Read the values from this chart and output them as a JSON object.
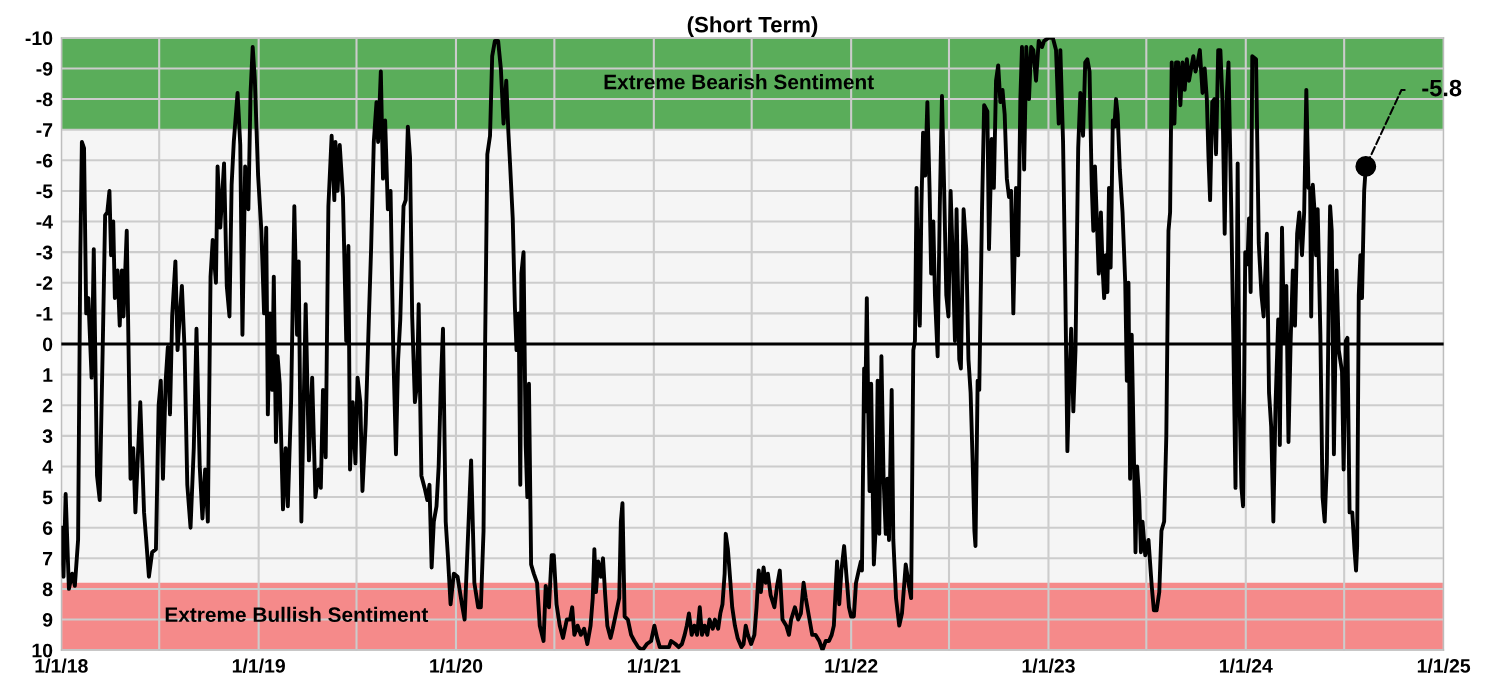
{
  "chart_data": {
    "type": "line",
    "title": "(Short Term)",
    "xlim": [
      "2018-01-01",
      "2025-01-01"
    ],
    "xticks": [
      {
        "value": "2018-01-01",
        "label": "1/1/18"
      },
      {
        "value": "2018-07-01",
        "label": null
      },
      {
        "value": "2019-01-01",
        "label": "1/1/19"
      },
      {
        "value": "2019-07-01",
        "label": null
      },
      {
        "value": "2020-01-01",
        "label": "1/1/20"
      },
      {
        "value": "2020-07-01",
        "label": null
      },
      {
        "value": "2021-01-01",
        "label": "1/1/21"
      },
      {
        "value": "2021-07-01",
        "label": null
      },
      {
        "value": "2022-01-01",
        "label": "1/1/22"
      },
      {
        "value": "2022-07-01",
        "label": null
      },
      {
        "value": "2023-01-01",
        "label": "1/1/23"
      },
      {
        "value": "2023-07-01",
        "label": null
      },
      {
        "value": "2024-01-01",
        "label": "1/1/24"
      },
      {
        "value": "2024-07-01",
        "label": null
      },
      {
        "value": "2025-01-01",
        "label": "1/1/25"
      }
    ],
    "ylim": [
      10,
      -10
    ],
    "yticks": [
      -10,
      -9,
      -8,
      -7,
      -6,
      -5,
      -4,
      -3,
      -2,
      -1,
      0,
      1,
      2,
      3,
      4,
      5,
      6,
      7,
      8,
      9,
      10
    ],
    "grid": true,
    "line_style": "solid",
    "ref_lines": [
      {
        "axis": "y",
        "value": 0,
        "label": null,
        "color": "#000000"
      }
    ],
    "bands": [
      {
        "axis": "y",
        "from": -10,
        "to": -7,
        "label": "Extreme Bearish Sentiment",
        "color": "#5aad5a"
      },
      {
        "axis": "y",
        "from": 10,
        "to": 7.8,
        "label": "Extreme Bullish Sentiment",
        "color": "#f58a8a"
      }
    ],
    "annotations": [
      {
        "text": "-5.8",
        "x": "2024-08-10",
        "y": -5.8
      }
    ],
    "series": [
      {
        "color": "#000000",
        "x": [
          "2018-01-01",
          "2018-01-05",
          "2018-01-09",
          "2018-01-15",
          "2018-01-21",
          "2018-01-26",
          "2018-02-01",
          "2018-02-05",
          "2018-02-08",
          "2018-02-12",
          "2018-02-16",
          "2018-02-20",
          "2018-02-26",
          "2018-03-02",
          "2018-03-08",
          "2018-03-13",
          "2018-03-19",
          "2018-03-23",
          "2018-03-27",
          "2018-03-31",
          "2018-04-03",
          "2018-04-07",
          "2018-04-10",
          "2018-04-15",
          "2018-04-19",
          "2018-04-23",
          "2018-04-26",
          "2018-05-02",
          "2018-05-09",
          "2018-05-14",
          "2018-05-18",
          "2018-05-22",
          "2018-05-27",
          "2018-06-03",
          "2018-06-07",
          "2018-06-12",
          "2018-06-18",
          "2018-06-25",
          "2018-06-30",
          "2018-07-04",
          "2018-07-08",
          "2018-07-13",
          "2018-07-17",
          "2018-07-21",
          "2018-07-25",
          "2018-07-31",
          "2018-08-04",
          "2018-08-08",
          "2018-08-12",
          "2018-08-17",
          "2018-08-22",
          "2018-08-28",
          "2018-09-03",
          "2018-09-08",
          "2018-09-14",
          "2018-09-19",
          "2018-09-24",
          "2018-09-29",
          "2018-10-04",
          "2018-10-08",
          "2018-10-14",
          "2018-10-17",
          "2018-10-22",
          "2018-10-29",
          "2018-11-03",
          "2018-11-08",
          "2018-11-12",
          "2018-11-16",
          "2018-11-23",
          "2018-11-28",
          "2018-12-02",
          "2018-12-07",
          "2018-12-13",
          "2018-12-17",
          "2018-12-21",
          "2018-12-25",
          "2018-12-31",
          "2019-01-06",
          "2019-01-11",
          "2019-01-15",
          "2019-01-18",
          "2019-01-22",
          "2019-01-26",
          "2019-01-29",
          "2019-02-02",
          "2019-02-05",
          "2019-02-09",
          "2019-02-15",
          "2019-02-20",
          "2019-02-24",
          "2019-03-02",
          "2019-03-08",
          "2019-03-13",
          "2019-03-16",
          "2019-03-21",
          "2019-03-29",
          "2019-04-04",
          "2019-04-10",
          "2019-04-16",
          "2019-04-22",
          "2019-04-26",
          "2019-04-30",
          "2019-05-05",
          "2019-05-10",
          "2019-05-16",
          "2019-05-21",
          "2019-05-23",
          "2019-05-27",
          "2019-05-31",
          "2019-06-06",
          "2019-06-12",
          "2019-06-16",
          "2019-06-19",
          "2019-06-24",
          "2019-06-29",
          "2019-07-03",
          "2019-07-08",
          "2019-07-12",
          "2019-07-18",
          "2019-07-24",
          "2019-07-28",
          "2019-08-02",
          "2019-08-07",
          "2019-08-10",
          "2019-08-15",
          "2019-08-19",
          "2019-08-23",
          "2019-08-28",
          "2019-09-02",
          "2019-09-07",
          "2019-09-12",
          "2019-09-16",
          "2019-09-20",
          "2019-09-26",
          "2019-09-30",
          "2019-10-04",
          "2019-10-08",
          "2019-10-12",
          "2019-10-17",
          "2019-10-21",
          "2019-10-24",
          "2019-10-29",
          "2019-11-04",
          "2019-11-09",
          "2019-11-13",
          "2019-11-17",
          "2019-11-21",
          "2019-11-26",
          "2019-11-30",
          "2019-12-04",
          "2019-12-08",
          "2019-12-13",
          "2019-12-17",
          "2019-12-22",
          "2019-12-28",
          "2020-01-04",
          "2020-01-12",
          "2020-01-17",
          "2020-01-23",
          "2020-01-29",
          "2020-02-04",
          "2020-02-11",
          "2020-02-16",
          "2020-02-21",
          "2020-02-24",
          "2020-02-28",
          "2020-03-04",
          "2020-03-08",
          "2020-03-13",
          "2020-03-19",
          "2020-03-24",
          "2020-03-29",
          "2020-04-03",
          "2020-04-07",
          "2020-04-10",
          "2020-04-15",
          "2020-04-19",
          "2020-04-22",
          "2020-04-26",
          "2020-04-29",
          "2020-05-01",
          "2020-05-05",
          "2020-05-09",
          "2020-05-12",
          "2020-05-15",
          "2020-05-19",
          "2020-05-24",
          "2020-05-30",
          "2020-06-04",
          "2020-06-11",
          "2020-06-15",
          "2020-06-21",
          "2020-06-26",
          "2020-06-30",
          "2020-07-05",
          "2020-07-11",
          "2020-07-17",
          "2020-07-24",
          "2020-07-30",
          "2020-08-03",
          "2020-08-07",
          "2020-08-13",
          "2020-08-19",
          "2020-08-25",
          "2020-08-31",
          "2020-09-06",
          "2020-09-10",
          "2020-09-13",
          "2020-09-16",
          "2020-09-20",
          "2020-09-25",
          "2020-09-29",
          "2020-10-03",
          "2020-10-07",
          "2020-10-13",
          "2020-10-17",
          "2020-10-23",
          "2020-10-29",
          "2020-11-01",
          "2020-11-04",
          "2020-11-08",
          "2020-11-14",
          "2020-11-20",
          "2020-11-26",
          "2020-12-03",
          "2020-12-11",
          "2020-12-19",
          "2020-12-27",
          "2021-01-02",
          "2021-01-07",
          "2021-01-12",
          "2021-01-20",
          "2021-01-29",
          "2021-02-02",
          "2021-02-10",
          "2021-02-16",
          "2021-02-22",
          "2021-02-27",
          "2021-03-03",
          "2021-03-07",
          "2021-03-12",
          "2021-03-17",
          "2021-03-22",
          "2021-03-27",
          "2021-03-31",
          "2021-04-05",
          "2021-04-10",
          "2021-04-14",
          "2021-04-20",
          "2021-04-24",
          "2021-04-30",
          "2021-05-04",
          "2021-05-08",
          "2021-05-12",
          "2021-05-14",
          "2021-05-18",
          "2021-05-21",
          "2021-05-26",
          "2021-05-31",
          "2021-06-05",
          "2021-06-12",
          "2021-06-16",
          "2021-06-20",
          "2021-06-24",
          "2021-06-30",
          "2021-07-06",
          "2021-07-10",
          "2021-07-14",
          "2021-07-18",
          "2021-07-23",
          "2021-07-27",
          "2021-07-31",
          "2021-08-05",
          "2021-08-12",
          "2021-08-17",
          "2021-08-22",
          "2021-08-27",
          "2021-09-03",
          "2021-09-08",
          "2021-09-12",
          "2021-09-19",
          "2021-09-25",
          "2021-09-30",
          "2021-10-05",
          "2021-10-09",
          "2021-10-15",
          "2021-10-21",
          "2021-10-27",
          "2021-11-03",
          "2021-11-09",
          "2021-11-15",
          "2021-11-21",
          "2021-11-26",
          "2021-11-30",
          "2021-12-06",
          "2021-12-10",
          "2021-12-14",
          "2021-12-19",
          "2021-12-23",
          "2021-12-28",
          "2022-01-01",
          "2022-01-06",
          "2022-01-10",
          "2022-01-15",
          "2022-01-19",
          "2022-01-21",
          "2022-01-25",
          "2022-01-27",
          "2022-01-30",
          "2022-02-02",
          "2022-02-04",
          "2022-02-07",
          "2022-02-12",
          "2022-02-16",
          "2022-02-19",
          "2022-02-22",
          "2022-02-26",
          "2022-03-02",
          "2022-03-06",
          "2022-03-09",
          "2022-03-12",
          "2022-03-17",
          "2022-03-20",
          "2022-03-25",
          "2022-03-31",
          "2022-04-05",
          "2022-04-12",
          "2022-04-18",
          "2022-04-22",
          "2022-04-26",
          "2022-04-29",
          "2022-05-02",
          "2022-05-05",
          "2022-05-08",
          "2022-05-11",
          "2022-05-14",
          "2022-05-18",
          "2022-05-22",
          "2022-05-26",
          "2022-05-29",
          "2022-06-02",
          "2022-06-05",
          "2022-06-10",
          "2022-06-14",
          "2022-06-18",
          "2022-06-22",
          "2022-06-26",
          "2022-06-30",
          "2022-07-04",
          "2022-07-09",
          "2022-07-12",
          "2022-07-15",
          "2022-07-20",
          "2022-07-23",
          "2022-07-28",
          "2022-08-02",
          "2022-08-06",
          "2022-08-10",
          "2022-08-14",
          "2022-08-17",
          "2022-08-19",
          "2022-08-23",
          "2022-08-26",
          "2022-08-31",
          "2022-09-04",
          "2022-09-10",
          "2022-09-13",
          "2022-09-18",
          "2022-09-22",
          "2022-09-26",
          "2022-09-30",
          "2022-10-04",
          "2022-10-08",
          "2022-10-12",
          "2022-10-16",
          "2022-10-20",
          "2022-10-24",
          "2022-10-28",
          "2022-11-02",
          "2022-11-06",
          "2022-11-10",
          "2022-11-13",
          "2022-11-17",
          "2022-11-21",
          "2022-11-26",
          "2022-11-30",
          "2022-12-04",
          "2022-12-09",
          "2022-12-14",
          "2022-12-20",
          "2022-12-24",
          "2023-01-01",
          "2023-01-09",
          "2023-01-15",
          "2023-01-20",
          "2023-01-23",
          "2023-01-28",
          "2023-02-01",
          "2023-02-05",
          "2023-02-08",
          "2023-02-12",
          "2023-02-16",
          "2023-02-20",
          "2023-02-25",
          "2023-03-01",
          "2023-03-06",
          "2023-03-10",
          "2023-03-14",
          "2023-03-18",
          "2023-03-22",
          "2023-03-25",
          "2023-03-28",
          "2023-03-31",
          "2023-04-04",
          "2023-04-08",
          "2023-04-11",
          "2023-04-14",
          "2023-04-17",
          "2023-04-20",
          "2023-04-23",
          "2023-04-26",
          "2023-04-30",
          "2023-05-03",
          "2023-05-06",
          "2023-05-09",
          "2023-05-13",
          "2023-05-18",
          "2023-05-23",
          "2023-05-26",
          "2023-05-29",
          "2023-06-01",
          "2023-06-04",
          "2023-06-08",
          "2023-06-11",
          "2023-06-14",
          "2023-06-18",
          "2023-06-21",
          "2023-06-24",
          "2023-06-29",
          "2023-07-05",
          "2023-07-11",
          "2023-07-15",
          "2023-07-20",
          "2023-07-25",
          "2023-07-29",
          "2023-08-03",
          "2023-08-07",
          "2023-08-11",
          "2023-08-14",
          "2023-08-17",
          "2023-08-22",
          "2023-08-25",
          "2023-08-29",
          "2023-09-02",
          "2023-09-06",
          "2023-09-10",
          "2023-09-14",
          "2023-09-18",
          "2023-09-22",
          "2023-09-26",
          "2023-09-30",
          "2023-10-04",
          "2023-10-08",
          "2023-10-13",
          "2023-10-17",
          "2023-10-21",
          "2023-10-24",
          "2023-10-27",
          "2023-10-31",
          "2023-11-04",
          "2023-11-07",
          "2023-11-11",
          "2023-11-15",
          "2023-11-19",
          "2023-11-23",
          "2023-11-27",
          "2023-11-30",
          "2023-12-05",
          "2023-12-09",
          "2023-12-13",
          "2023-12-17",
          "2023-12-20",
          "2023-12-24",
          "2023-12-27",
          "2023-12-31",
          "2024-01-04",
          "2024-01-07",
          "2024-01-10",
          "2024-01-13",
          "2024-01-20",
          "2024-01-25",
          "2024-01-30",
          "2024-02-03",
          "2024-02-09",
          "2024-02-13",
          "2024-02-17",
          "2024-02-21",
          "2024-02-25",
          "2024-03-01",
          "2024-03-04",
          "2024-03-08",
          "2024-03-12",
          "2024-03-16",
          "2024-03-20",
          "2024-03-24",
          "2024-03-28",
          "2024-04-01",
          "2024-04-05",
          "2024-04-09",
          "2024-04-14",
          "2024-04-18",
          "2024-04-22",
          "2024-04-26",
          "2024-04-29",
          "2024-05-01",
          "2024-05-04",
          "2024-05-07",
          "2024-05-10",
          "2024-05-13",
          "2024-05-18",
          "2024-05-22",
          "2024-05-26",
          "2024-05-30",
          "2024-06-03",
          "2024-06-05",
          "2024-06-08",
          "2024-06-12",
          "2024-06-17",
          "2024-06-21",
          "2024-06-27",
          "2024-06-30",
          "2024-07-04",
          "2024-07-07",
          "2024-07-11",
          "2024-07-16",
          "2024-07-20",
          "2024-07-23",
          "2024-07-25",
          "2024-07-28",
          "2024-07-31",
          "2024-08-03",
          "2024-08-07",
          "2024-08-10"
        ],
        "values": [
          6.0,
          7.6,
          4.9,
          8.0,
          7.5,
          7.9,
          6.4,
          -2.7,
          -6.6,
          -6.4,
          -1.0,
          -1.5,
          1.1,
          -3.1,
          4.3,
          5.1,
          -0.3,
          -4.2,
          -4.3,
          -5.0,
          -2.9,
          -4.0,
          -1.5,
          -2.4,
          -0.6,
          -2.4,
          -0.9,
          -3.7,
          4.4,
          3.4,
          5.5,
          3.9,
          1.9,
          5.5,
          6.4,
          7.6,
          6.8,
          6.7,
          2.0,
          1.2,
          4.4,
          1.2,
          0.1,
          2.3,
          -0.9,
          -2.7,
          0.2,
          -0.9,
          -1.9,
          0.2,
          4.6,
          6.0,
          3.4,
          -0.5,
          4.0,
          5.7,
          4.1,
          5.8,
          -2.2,
          -3.4,
          -2.0,
          -5.8,
          -3.8,
          -5.9,
          -1.9,
          -0.9,
          -5.2,
          -6.6,
          -8.2,
          -6.5,
          -0.3,
          -5.8,
          -4.4,
          -8.2,
          -9.7,
          -8.6,
          -5.5,
          -3.7,
          -1.0,
          -3.8,
          2.3,
          -1.0,
          1.5,
          -2.2,
          3.2,
          0.4,
          1.3,
          5.4,
          3.4,
          5.3,
          1.9,
          -4.5,
          -0.3,
          -2.7,
          5.8,
          -1.3,
          3.8,
          1.1,
          5.0,
          4.1,
          4.7,
          1.5,
          3.7,
          -4.5,
          -6.8,
          -4.7,
          -6.6,
          -5.0,
          -6.5,
          -4.8,
          -0.1,
          -3.2,
          4.1,
          1.9,
          3.9,
          1.1,
          1.9,
          4.8,
          2.6,
          -0.9,
          -3.1,
          -6.6,
          -7.9,
          -6.6,
          -8.9,
          -5.4,
          -7.3,
          -4.4,
          -5.0,
          0.2,
          3.6,
          0.5,
          -0.8,
          -4.5,
          -4.7,
          -7.1,
          -6.1,
          -0.9,
          1.9,
          1.3,
          -1.3,
          4.3,
          4.7,
          5.1,
          4.6,
          7.3,
          5.8,
          5.3,
          4.0,
          1.3,
          -0.5,
          5.8,
          6.9,
          8.5,
          7.5,
          7.6,
          8.5,
          9.0,
          6.4,
          3.8,
          7.8,
          8.6,
          8.6,
          6.1,
          -0.1,
          -6.2,
          -6.8,
          -9.4,
          -9.9,
          -9.9,
          -9.0,
          -7.2,
          -8.6,
          -6.9,
          -5.9,
          -4.1,
          -1.2,
          0.2,
          -1.0,
          4.6,
          -2.3,
          -3.0,
          3.3,
          5.0,
          1.3,
          7.2,
          7.5,
          7.8,
          9.2,
          9.7,
          7.9,
          8.6,
          6.9,
          6.9,
          8.5,
          9.2,
          9.6,
          9.0,
          9.0,
          8.6,
          9.5,
          9.2,
          9.5,
          9.3,
          9.8,
          9.2,
          8.3,
          6.7,
          8.1,
          7.1,
          7.6,
          7.0,
          8.2,
          9.2,
          9.6,
          9.3,
          8.8,
          8.3,
          5.8,
          5.2,
          8.9,
          9.0,
          9.5,
          9.7,
          9.9,
          10.0,
          9.8,
          9.7,
          9.2,
          9.6,
          9.9,
          9.9,
          9.9,
          9.7,
          9.8,
          9.9,
          9.8,
          9.5,
          9.2,
          8.8,
          9.5,
          9.2,
          9.5,
          8.6,
          9.5,
          9.2,
          9.5,
          9.0,
          9.3,
          9.0,
          9.3,
          8.8,
          8.5,
          7.5,
          6.2,
          6.7,
          7.4,
          8.6,
          9.2,
          9.6,
          9.9,
          9.8,
          9.2,
          9.5,
          9.8,
          9.5,
          8.6,
          7.4,
          8.1,
          7.3,
          7.8,
          7.5,
          8.2,
          8.6,
          7.9,
          7.4,
          9.0,
          9.2,
          9.5,
          9.0,
          8.6,
          9.0,
          8.8,
          7.8,
          8.3,
          8.9,
          9.5,
          9.5,
          9.7,
          10.0,
          9.7,
          9.7,
          9.5,
          9.2,
          7.1,
          8.5,
          7.4,
          6.6,
          7.5,
          8.6,
          8.9,
          8.9,
          7.8,
          7.4,
          7.1,
          7.4,
          0.8,
          2.2,
          -1.5,
          2.6,
          4.8,
          1.3,
          7.2,
          5.8,
          1.2,
          6.2,
          0.4,
          4.4,
          6.2,
          4.4,
          6.4,
          1.5,
          6.4,
          8.3,
          9.2,
          8.8,
          7.2,
          7.9,
          8.3,
          0.2,
          -0.1,
          -5.1,
          -1.7,
          -0.6,
          -4.5,
          -6.9,
          -5.5,
          -7.9,
          -5.1,
          -2.3,
          -4.0,
          -1.6,
          0.4,
          -4.5,
          -8.1,
          -5.1,
          -1.6,
          -0.9,
          -5.0,
          -2.2,
          -0.1,
          -4.4,
          0.5,
          0.8,
          -4.4,
          -3.1,
          0.5,
          1.6,
          4.0,
          6.1,
          6.6,
          1.2,
          1.5,
          -4.3,
          -7.8,
          -7.6,
          -3.1,
          -6.7,
          -5.1,
          -8.6,
          -9.1,
          -7.9,
          -8.3,
          -7.5,
          -5.4,
          -4.8,
          -5.0,
          -1.0,
          -5.1,
          -2.9,
          -8.0,
          -9.7,
          -5.7,
          -9.7,
          -8.0,
          -9.7,
          -9.6,
          -8.6,
          -9.9,
          -9.7,
          -9.9,
          -10.0,
          -10.0,
          -9.6,
          -7.2,
          -9.6,
          -6.6,
          -2.0,
          3.5,
          1.5,
          -0.5,
          2.2,
          0.2,
          -6.4,
          -8.2,
          -6.8,
          -9.2,
          -9.3,
          -8.9,
          -5.2,
          -3.7,
          -5.8,
          -4.3,
          -2.3,
          -4.3,
          -2.5,
          -1.5,
          -2.9,
          -1.7,
          -5.1,
          -2.5,
          -7.3,
          -7.1,
          -8.0,
          -7.5,
          -5.7,
          -4.3,
          -2.0,
          1.2,
          -2.0,
          4.4,
          -0.3,
          3.6,
          6.8,
          4.0,
          5.1,
          6.8,
          5.8,
          6.9,
          6.4,
          7.9,
          8.7,
          8.7,
          8.1,
          6.1,
          5.8,
          3.0,
          -3.7,
          -4.3,
          -9.2,
          -7.2,
          -9.2,
          -9.2,
          -7.8,
          -9.2,
          -8.3,
          -9.3,
          -8.6,
          -9.0,
          -9.4,
          -8.9,
          -9.2,
          -9.6,
          -8.2,
          -9.0,
          -8.0,
          -6.1,
          -4.7,
          -7.9,
          -8.0,
          -6.2,
          -9.6,
          -9.6,
          -7.9,
          -3.6,
          -8.2,
          -9.2,
          -4.5,
          -0.1,
          4.7,
          -5.9,
          1.5,
          4.7,
          5.3,
          -3.0,
          -2.6,
          -4.1,
          -1.7,
          -9.4,
          -9.3,
          -3.3,
          -1.6,
          -0.9,
          -3.6,
          1.6,
          2.7,
          5.8,
          2.0,
          -0.8,
          3.3,
          -3.8,
          -0.1,
          -1.9,
          3.2,
          -0.1,
          -2.4,
          -0.6,
          -3.6,
          -4.3,
          -2.9,
          -4.3,
          -8.3,
          -5.1,
          -5.1,
          -0.9,
          -5.2,
          -4.4,
          -2.9,
          -4.4,
          -0.3,
          5.0,
          5.8,
          3.9,
          -2.4,
          -4.5,
          -3.7,
          3.6,
          -2.4,
          0.2,
          0.9,
          4.1,
          -0.1,
          -0.2,
          5.5,
          5.5,
          6.7,
          7.4,
          6.6,
          -1.6,
          -2.9,
          -1.5,
          -5.0,
          -5.8
        ]
      }
    ]
  }
}
